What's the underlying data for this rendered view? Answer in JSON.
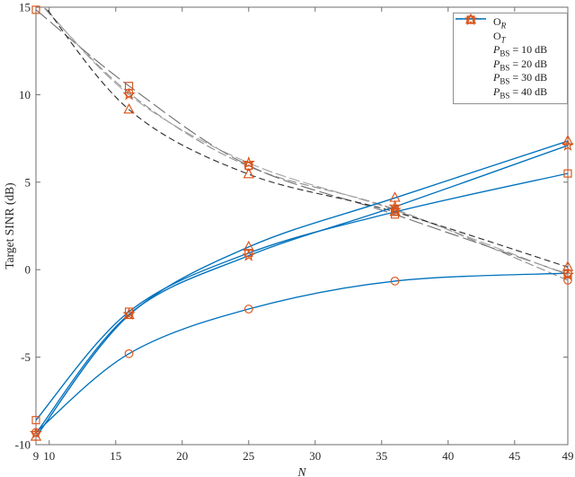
{
  "figure": {
    "background": "#ffffff"
  },
  "axes": {
    "xlabel": "N",
    "ylabel": "Target SINR (dB)",
    "x_tick_labels": [
      "9",
      "10",
      "15",
      "20",
      "25",
      "30",
      "35",
      "40",
      "45",
      "49"
    ],
    "y_tick_labels": [
      "15",
      "10",
      "5",
      "0",
      "-5",
      "-10"
    ],
    "axis_color": "#6e6e6e",
    "label_color": "#262626"
  },
  "legend": {
    "position": "top-right",
    "items": [
      {
        "glyph": "dashed-line",
        "main": "O",
        "main_italic": false,
        "sub": "R",
        "sub_italic": true,
        "rest": ""
      },
      {
        "glyph": "solid-line",
        "main": "O",
        "main_italic": false,
        "sub": "T",
        "sub_italic": true,
        "rest": ""
      },
      {
        "glyph": "circle",
        "main": "P",
        "main_italic": true,
        "sub": "BS",
        "sub_italic": false,
        "rest": " = 10 dB"
      },
      {
        "glyph": "square",
        "main": "P",
        "main_italic": true,
        "sub": "BS",
        "sub_italic": false,
        "rest": " = 20 dB"
      },
      {
        "glyph": "star",
        "main": "P",
        "main_italic": true,
        "sub": "BS",
        "sub_italic": false,
        "rest": " = 30 dB"
      },
      {
        "glyph": "triangle",
        "main": "P",
        "main_italic": true,
        "sub": "BS",
        "sub_italic": false,
        "rest": " = 40 dB"
      }
    ]
  },
  "chart_data": {
    "type": "line",
    "title": "",
    "xlabel": "N",
    "ylabel": "Target SINR (dB)",
    "xlim": [
      9,
      49
    ],
    "ylim": [
      -10,
      15
    ],
    "x_ticks": [
      9,
      10,
      15,
      20,
      25,
      30,
      35,
      40,
      45,
      49
    ],
    "y_ticks": [
      15,
      10,
      5,
      0,
      -5,
      -10
    ],
    "grid": false,
    "legend_position": "top-right",
    "marker_color": "#D95319",
    "line_color_ot": "#0072BD",
    "legend_dash_color": "#4d4d4d",
    "x": [
      9,
      16,
      25,
      36,
      49
    ],
    "series": [
      {
        "name": "O_R P_BS=10dB",
        "family": "O_R",
        "marker": "circle",
        "style": "dashed",
        "color": "#8c8c8c",
        "dash": "10 4",
        "width": 1.1,
        "values": [
          15.45,
          10.1,
          5.9,
          3.45,
          -0.6
        ]
      },
      {
        "name": "O_R P_BS=20dB",
        "family": "O_R",
        "marker": "square",
        "style": "dashed",
        "color": "#6e6e6e",
        "dash": "16 5",
        "width": 1.1,
        "values": [
          14.85,
          10.5,
          5.95,
          3.15,
          -0.25
        ]
      },
      {
        "name": "O_R P_BS=30dB",
        "family": "O_R",
        "marker": "star",
        "style": "dashed",
        "color": "#a3a3a3",
        "dash": "12 4",
        "width": 1.1,
        "values": [
          15.55,
          10.0,
          6.1,
          3.4,
          -0.3
        ]
      },
      {
        "name": "O_R P_BS=40dB",
        "family": "O_R",
        "marker": "triangle",
        "style": "dashed",
        "color": "#2b2b2b",
        "dash": "7 4",
        "width": 1.1,
        "values": [
          15.75,
          9.15,
          5.45,
          3.3,
          0.15
        ]
      },
      {
        "name": "O_T P_BS=10dB",
        "family": "O_T",
        "marker": "circle",
        "style": "solid",
        "color": "#0072BD",
        "dash": "",
        "width": 1.35,
        "values": [
          -9.3,
          -4.8,
          -2.25,
          -0.65,
          -0.2
        ]
      },
      {
        "name": "O_T P_BS=20dB",
        "family": "O_T",
        "marker": "square",
        "style": "solid",
        "color": "#0072BD",
        "dash": "",
        "width": 1.35,
        "values": [
          -8.6,
          -2.4,
          0.95,
          3.3,
          5.5
        ]
      },
      {
        "name": "O_T P_BS=30dB",
        "family": "O_T",
        "marker": "star",
        "style": "solid",
        "color": "#0072BD",
        "dash": "",
        "width": 1.35,
        "values": [
          -9.35,
          -2.55,
          0.8,
          3.6,
          7.1
        ]
      },
      {
        "name": "O_T P_BS=40dB",
        "family": "O_T",
        "marker": "triangle",
        "style": "solid",
        "color": "#0072BD",
        "dash": "",
        "width": 1.35,
        "values": [
          -9.55,
          -2.6,
          1.3,
          4.1,
          7.35
        ]
      }
    ]
  }
}
